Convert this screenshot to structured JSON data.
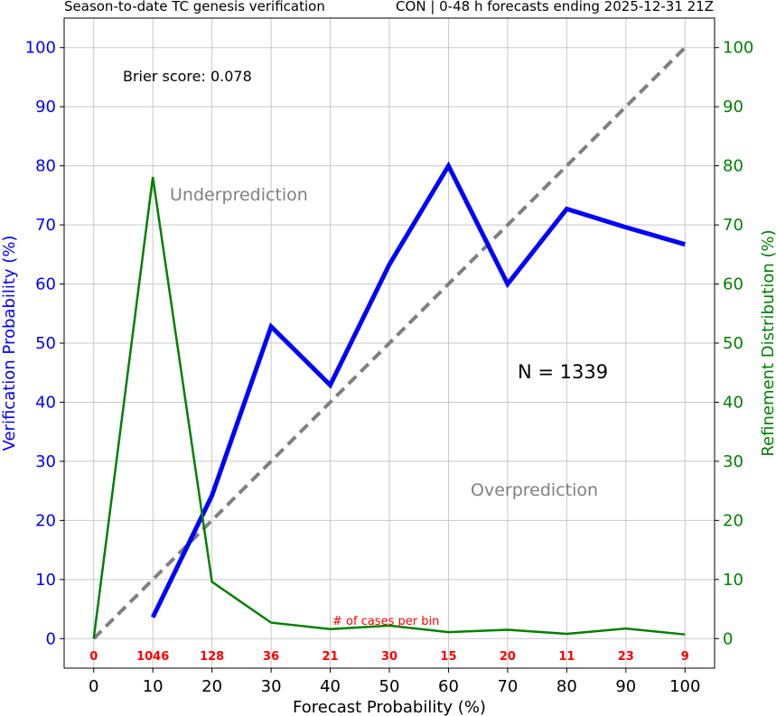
{
  "header": {
    "left": "Season-to-date TC genesis verification",
    "right": "CON | 0-48 h forecasts ending 2025-12-31 21Z"
  },
  "annotations": {
    "brier": "Brier score: 0.078",
    "under": "Underprediction",
    "over": "Overprediction",
    "n": "N = 1339",
    "cases_title": "# of cases per bin"
  },
  "colors": {
    "verification": "#0000ff",
    "refinement": "#008000",
    "perfect": "#808080",
    "counts": "#ff0000"
  },
  "chart_data": {
    "type": "line",
    "xlabel": "Forecast Probability (%)",
    "ylabel": "Verification Probability (%)",
    "ylabel_right": "Refinement Distribution (%)",
    "xlim": [
      -5,
      105
    ],
    "ylim": [
      -5,
      105
    ],
    "xticks": [
      0,
      10,
      20,
      30,
      40,
      50,
      60,
      70,
      80,
      90,
      100
    ],
    "yticks": [
      0,
      10,
      20,
      30,
      40,
      50,
      60,
      70,
      80,
      90,
      100
    ],
    "grid": true,
    "series": [
      {
        "x": [
          10,
          20,
          30,
          40,
          50,
          60,
          70,
          80,
          90,
          100
        ],
        "y": [
          3.6,
          24.2,
          52.8,
          42.9,
          63.3,
          80.0,
          60.0,
          72.7,
          69.6,
          66.7
        ]
      },
      {
        "x": [
          0,
          10,
          20,
          30,
          40,
          50,
          60,
          70,
          80,
          90,
          100
        ],
        "y": [
          0,
          78.1,
          9.6,
          2.7,
          1.6,
          2.2,
          1.1,
          1.5,
          0.8,
          1.7,
          0.7
        ]
      },
      {
        "x": [
          0,
          100
        ],
        "y": [
          0,
          100
        ]
      }
    ],
    "counts": {
      "x": [
        0,
        10,
        20,
        30,
        40,
        50,
        60,
        70,
        80,
        90,
        100
      ],
      "labels": [
        "0",
        "1046",
        "128",
        "36",
        "21",
        "30",
        "15",
        "20",
        "11",
        "23",
        "9"
      ]
    }
  }
}
